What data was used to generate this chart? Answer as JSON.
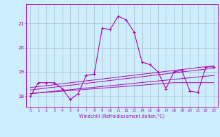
{
  "xlabel": "Windchill (Refroidissement éolien,°C)",
  "background_color": "#cceeff",
  "grid_color": "#aabbcc",
  "line_color": "#aa00aa",
  "x": [
    0,
    1,
    2,
    3,
    4,
    5,
    6,
    7,
    8,
    9,
    10,
    11,
    12,
    13,
    14,
    15,
    16,
    17,
    18,
    19,
    20,
    21,
    22,
    23
  ],
  "line1": [
    18.0,
    18.55,
    18.55,
    18.55,
    18.3,
    17.85,
    18.1,
    18.85,
    18.9,
    20.8,
    20.75,
    21.3,
    21.15,
    20.65,
    19.4,
    19.3,
    19.0,
    18.3,
    19.0,
    19.05,
    18.2,
    18.15,
    19.2,
    19.2
  ],
  "line2_x": [
    0,
    18,
    23
  ],
  "line2_y": [
    18.1,
    18.55,
    18.55
  ],
  "line3_x": [
    0,
    23
  ],
  "line3_y": [
    18.1,
    18.85
  ],
  "line4_x": [
    0,
    23
  ],
  "line4_y": [
    18.25,
    19.15
  ],
  "line5_x": [
    0,
    23
  ],
  "line5_y": [
    18.35,
    19.25
  ],
  "yticks": [
    18,
    19,
    20,
    21
  ],
  "ylim": [
    17.55,
    21.8
  ],
  "xlim": [
    -0.5,
    23.5
  ]
}
